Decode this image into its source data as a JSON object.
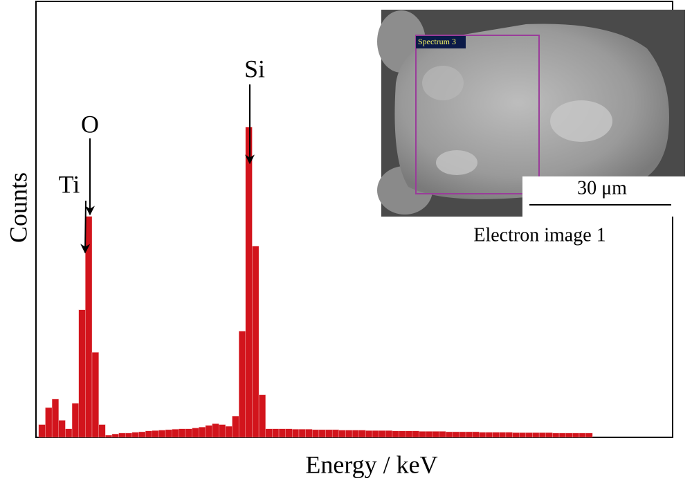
{
  "chart_data": {
    "type": "histogram",
    "x_label": "Energy / keV",
    "y_label": "Counts",
    "color": "#d2141c",
    "xlim": [
      0.13,
      4.9
    ],
    "ylim": [
      0,
      100
    ],
    "bins": [
      0.15,
      0.2,
      0.25,
      0.3,
      0.35,
      0.4,
      0.45,
      0.5,
      0.55,
      0.6,
      0.65,
      0.7,
      0.75,
      0.8,
      0.85,
      0.9,
      0.95,
      1.0,
      1.05,
      1.1,
      1.15,
      1.2,
      1.25,
      1.3,
      1.35,
      1.4,
      1.45,
      1.5,
      1.55,
      1.6,
      1.65,
      1.7,
      1.75,
      1.8,
      1.85,
      1.9,
      1.95,
      2.0,
      2.05,
      2.1,
      2.15,
      2.2,
      2.25,
      2.3,
      2.35,
      2.4,
      2.45,
      2.5,
      2.55,
      2.6,
      2.65,
      2.7,
      2.75,
      2.8,
      2.85,
      2.9,
      2.95,
      3.0,
      3.05,
      3.1,
      3.15,
      3.2,
      3.25,
      3.3,
      3.35,
      3.4,
      3.45,
      3.5,
      3.55,
      3.6,
      3.65,
      3.7,
      3.75,
      3.8,
      3.85,
      3.9,
      3.95,
      4.0,
      4.05,
      4.1,
      4.15,
      4.2,
      4.25,
      4.3
    ],
    "counts": [
      3,
      7,
      9,
      4,
      2,
      8,
      30,
      52,
      20,
      3,
      0.5,
      0.8,
      1,
      1,
      1.2,
      1.3,
      1.5,
      1.6,
      1.7,
      1.8,
      1.9,
      2,
      2,
      2.2,
      2.4,
      2.8,
      3.2,
      3,
      2.6,
      5,
      25,
      73,
      45,
      10,
      2,
      2,
      2,
      2,
      1.9,
      1.9,
      1.9,
      1.8,
      1.8,
      1.8,
      1.8,
      1.7,
      1.7,
      1.7,
      1.7,
      1.6,
      1.6,
      1.6,
      1.6,
      1.5,
      1.5,
      1.5,
      1.5,
      1.4,
      1.4,
      1.4,
      1.4,
      1.3,
      1.3,
      1.3,
      1.3,
      1.3,
      1.2,
      1.2,
      1.2,
      1.2,
      1.2,
      1.1,
      1.1,
      1.1,
      1.1,
      1.1,
      1.1,
      1,
      1,
      1,
      1,
      1,
      1
    ],
    "annotations": [
      "Ti",
      "O",
      "Si"
    ]
  },
  "inset": {
    "spectrum_label": "Spectrum 3",
    "scale_bar": "30 μm",
    "caption": "Electron image 1"
  }
}
